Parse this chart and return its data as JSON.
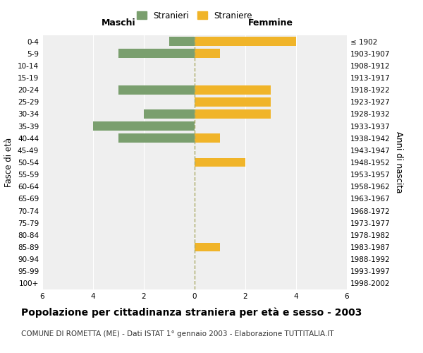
{
  "age_groups": [
    "0-4",
    "5-9",
    "10-14",
    "15-19",
    "20-24",
    "25-29",
    "30-34",
    "35-39",
    "40-44",
    "45-49",
    "50-54",
    "55-59",
    "60-64",
    "65-69",
    "70-74",
    "75-79",
    "80-84",
    "85-89",
    "90-94",
    "95-99",
    "100+"
  ],
  "birth_years": [
    "1998-2002",
    "1993-1997",
    "1988-1992",
    "1983-1987",
    "1978-1982",
    "1973-1977",
    "1968-1972",
    "1963-1967",
    "1958-1962",
    "1953-1957",
    "1948-1952",
    "1943-1947",
    "1938-1942",
    "1933-1937",
    "1928-1932",
    "1923-1927",
    "1918-1922",
    "1913-1917",
    "1908-1912",
    "1903-1907",
    "≤ 1902"
  ],
  "maschi": [
    1,
    3,
    0,
    0,
    3,
    0,
    2,
    4,
    3,
    0,
    0,
    0,
    0,
    0,
    0,
    0,
    0,
    0,
    0,
    0,
    0
  ],
  "femmine": [
    4,
    1,
    0,
    0,
    3,
    3,
    3,
    0,
    1,
    0,
    2,
    0,
    0,
    0,
    0,
    0,
    0,
    1,
    0,
    0,
    0
  ],
  "maschi_color": "#7a9f6e",
  "femmine_color": "#f0b429",
  "title": "Popolazione per cittadinanza straniera per età e sesso - 2003",
  "subtitle": "COMUNE DI ROMETTA (ME) - Dati ISTAT 1° gennaio 2003 - Elaborazione TUTTITALIA.IT",
  "xlabel_left": "Maschi",
  "xlabel_right": "Femmine",
  "ylabel_left": "Fasce di età",
  "ylabel_right": "Anni di nascita",
  "legend_stranieri": "Stranieri",
  "legend_straniere": "Straniere",
  "xlim": 6,
  "bg_color": "#ffffff",
  "plot_bg_color": "#efefef",
  "grid_color": "#ffffff",
  "bar_height": 0.75,
  "tick_fontsize": 7.5,
  "title_fontsize": 10,
  "subtitle_fontsize": 7.5
}
